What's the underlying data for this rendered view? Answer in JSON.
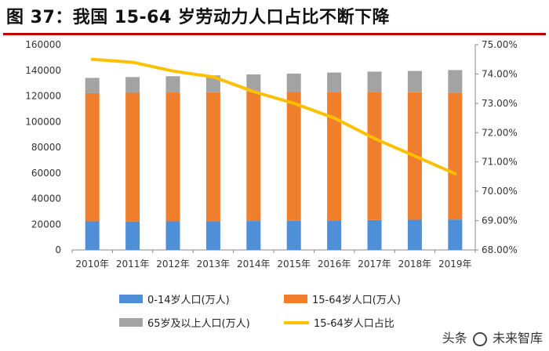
{
  "title": "图 37：我国 15-64 岁劳动力人口占比不断下降",
  "watermark": {
    "prefix": "头条",
    "handle": "未来智库"
  },
  "colors": {
    "age0_14": "#4f8fd8",
    "age15_64": "#f07f2d",
    "age65": "#a3a3a3",
    "ratio": "#ffc000",
    "rule": "#c00000"
  },
  "chart_data": {
    "type": "bar",
    "stacked": true,
    "categories": [
      "2010年",
      "2011年",
      "2012年",
      "2013年",
      "2014年",
      "2015年",
      "2016年",
      "2017年",
      "2018年",
      "2019年"
    ],
    "series": [
      {
        "name": "0-14岁人口(万人)",
        "axis": "left",
        "values": [
          22259,
          22164,
          22287,
          22329,
          22558,
          22715,
          23008,
          23348,
          23523,
          23689
        ]
      },
      {
        "name": "15-64岁人口(万人)",
        "axis": "left",
        "values": [
          99938,
          100283,
          100403,
          100582,
          100469,
          100361,
          100260,
          99829,
          99357,
          98910
        ]
      },
      {
        "name": "65岁及以上人口(万人)",
        "axis": "left",
        "values": [
          11894,
          12288,
          12714,
          13161,
          13755,
          14386,
          15003,
          15831,
          16658,
          17603
        ]
      },
      {
        "name": "15-64岁人口占比",
        "type": "line",
        "axis": "right",
        "values": [
          74.5,
          74.4,
          74.1,
          73.9,
          73.4,
          73.0,
          72.5,
          71.8,
          71.2,
          70.6
        ]
      }
    ],
    "ylim": [
      0,
      160000
    ],
    "yticks": [
      "0",
      "20000",
      "40000",
      "60000",
      "80000",
      "100000",
      "120000",
      "140000",
      "160000"
    ],
    "y2lim": [
      68,
      75
    ],
    "y2ticks": [
      "68.00%",
      "69.00%",
      "70.00%",
      "71.00%",
      "72.00%",
      "73.00%",
      "74.00%",
      "75.00%"
    ],
    "legend": [
      "0-14岁人口(万人)",
      "15-64岁人口(万人)",
      "65岁及以上人口(万人)",
      "15-64岁人口占比"
    ],
    "legend_position": "bottom"
  }
}
